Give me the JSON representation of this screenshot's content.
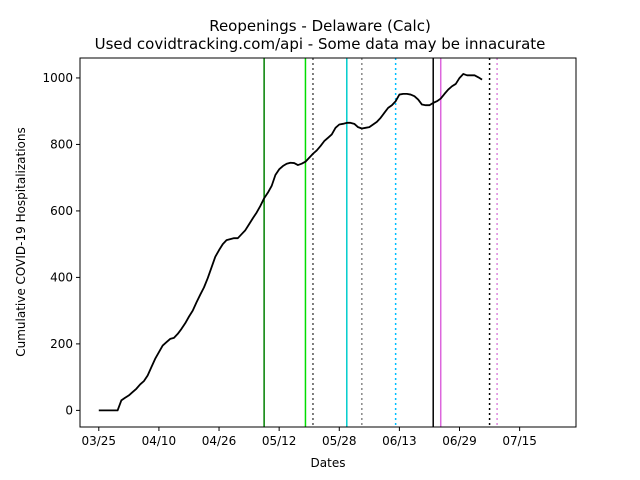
{
  "chart_data": {
    "type": "line",
    "title": "Reopenings - Delaware (Calc)",
    "subtitle": "Used covidtracking.com/api - Some data may be innacurate",
    "xlabel": "Dates",
    "ylabel": "Cumulative COVID-19 Hospitalizations",
    "x_start": "2020-03-25",
    "x_end": "2020-07-25",
    "xlim": [
      "2020-03-20",
      "2020-07-30"
    ],
    "ylim": [
      -50,
      1060
    ],
    "x_ticks": [
      {
        "label": "03/25",
        "date": "2020-03-25"
      },
      {
        "label": "04/10",
        "date": "2020-04-10"
      },
      {
        "label": "04/26",
        "date": "2020-04-26"
      },
      {
        "label": "05/12",
        "date": "2020-05-12"
      },
      {
        "label": "05/28",
        "date": "2020-05-28"
      },
      {
        "label": "06/13",
        "date": "2020-06-13"
      },
      {
        "label": "06/29",
        "date": "2020-06-29"
      },
      {
        "label": "07/15",
        "date": "2020-07-15"
      }
    ],
    "y_ticks": [
      0,
      200,
      400,
      600,
      800,
      1000
    ],
    "grid": false,
    "series": [
      {
        "color": "#000000",
        "values": [
          0,
          0,
          0,
          0,
          0,
          0,
          30,
          38,
          45,
          55,
          65,
          78,
          88,
          105,
          130,
          155,
          175,
          195,
          205,
          215,
          218,
          230,
          245,
          262,
          282,
          300,
          325,
          348,
          370,
          398,
          430,
          462,
          482,
          500,
          512,
          515,
          518,
          518,
          530,
          542,
          560,
          578,
          595,
          615,
          638,
          655,
          675,
          708,
          725,
          735,
          742,
          745,
          744,
          738,
          742,
          748,
          760,
          772,
          782,
          795,
          810,
          820,
          830,
          850,
          860,
          862,
          865,
          865,
          862,
          852,
          848,
          850,
          852,
          860,
          868,
          880,
          895,
          910,
          918,
          930,
          950,
          952,
          952,
          950,
          945,
          935,
          920,
          918,
          918,
          925,
          930,
          938,
          952,
          965,
          975,
          982,
          1000,
          1012,
          1008,
          1008,
          1008,
          1002,
          995
        ]
      }
    ],
    "reference_lines": [
      {
        "date": "2020-05-08",
        "color": "#008000",
        "style": "solid"
      },
      {
        "date": "2020-05-19",
        "color": "#00dd00",
        "style": "solid"
      },
      {
        "date": "2020-05-21",
        "color": "#555555",
        "style": "dotted"
      },
      {
        "date": "2020-05-30",
        "color": "#00cccc",
        "style": "solid"
      },
      {
        "date": "2020-06-03",
        "color": "#888888",
        "style": "dotted"
      },
      {
        "date": "2020-06-12",
        "color": "#00bfff",
        "style": "dotted"
      },
      {
        "date": "2020-06-22",
        "color": "#000000",
        "style": "solid"
      },
      {
        "date": "2020-06-24",
        "color": "#dd66dd",
        "style": "solid"
      },
      {
        "date": "2020-07-07",
        "color": "#000000",
        "style": "dotted"
      },
      {
        "date": "2020-07-09",
        "color": "#dd88dd",
        "style": "dotted"
      }
    ]
  }
}
